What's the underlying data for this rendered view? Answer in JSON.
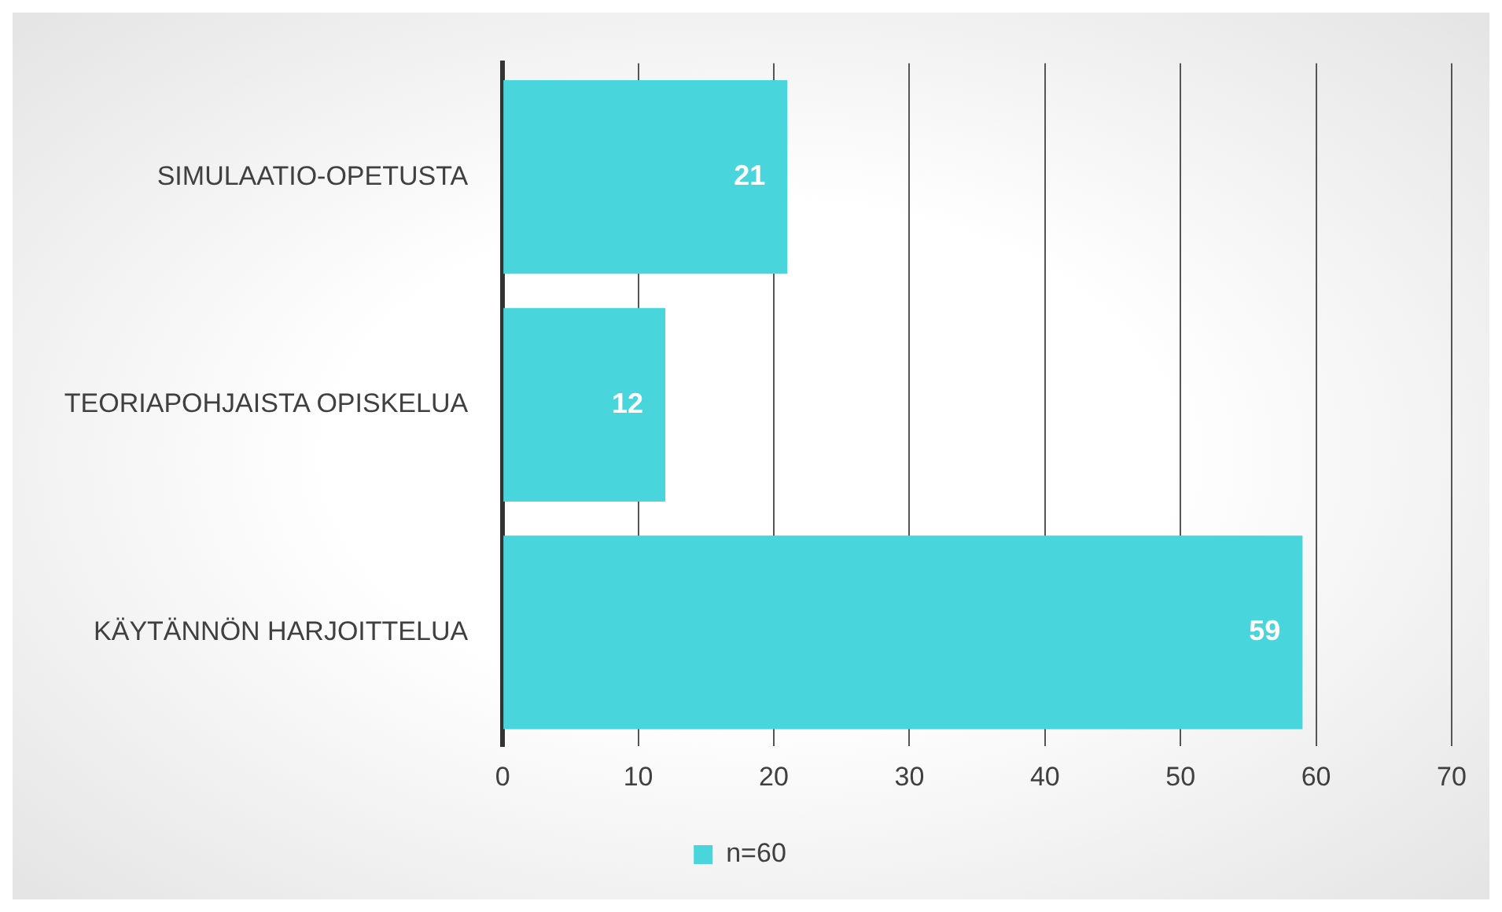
{
  "chart_data": {
    "type": "bar",
    "orientation": "horizontal",
    "categories": [
      "SIMULAATIO-OPETUSTA",
      "TEORIAPOHJAISTA OPISKELUA",
      "KÄYTÄNNÖN HARJOITTELUA"
    ],
    "series": [
      {
        "name": "n=60",
        "color": "#48d5dc",
        "values": [
          21,
          12,
          59
        ]
      }
    ],
    "xlim": [
      0,
      70
    ],
    "xticks": [
      0,
      10,
      20,
      30,
      40,
      50,
      60,
      70
    ],
    "grid": "x",
    "legend": "bottom",
    "data_labels": true
  }
}
